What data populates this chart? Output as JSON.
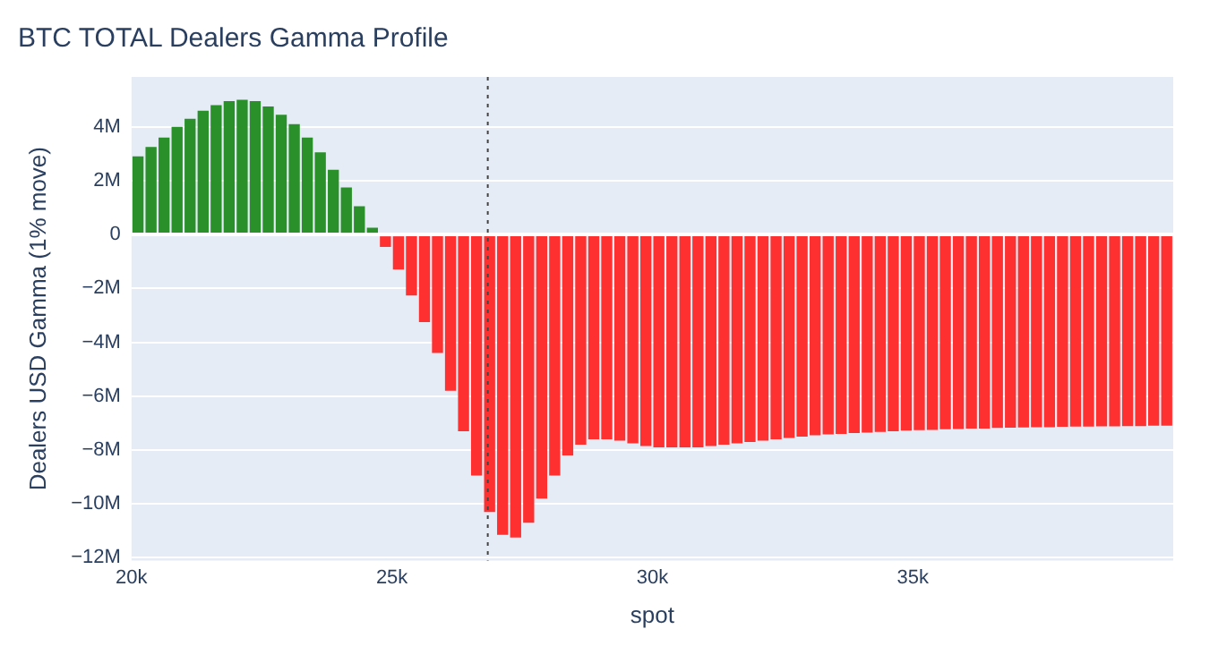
{
  "chart_data": {
    "type": "bar",
    "title": "BTC TOTAL Dealers Gamma Profile",
    "xlabel": "spot",
    "ylabel": "Dealers USD Gamma (1% move)",
    "x": [
      20125,
      20375,
      20625,
      20875,
      21125,
      21375,
      21625,
      21875,
      22125,
      22375,
      22625,
      22875,
      23125,
      23375,
      23625,
      23875,
      24125,
      24375,
      24625,
      24875,
      25125,
      25375,
      25625,
      25875,
      26125,
      26375,
      26625,
      26875,
      27125,
      27375,
      27625,
      27875,
      28125,
      28375,
      28625,
      28875,
      29125,
      29375,
      29625,
      29875,
      30125,
      30375,
      30625,
      30875,
      31125,
      31375,
      31625,
      31875,
      32125,
      32375,
      32625,
      32875,
      33125,
      33375,
      33625,
      33875,
      34125,
      34375,
      34625,
      34875,
      35125,
      35375,
      35625,
      35875,
      36125,
      36375,
      36625,
      36875,
      37125,
      37375,
      37625,
      37875,
      38125,
      38375,
      38625,
      38875,
      39125,
      39375,
      39625,
      39875
    ],
    "values": [
      2900000,
      3250000,
      3600000,
      4000000,
      4300000,
      4600000,
      4800000,
      4950000,
      5000000,
      4950000,
      4750000,
      4450000,
      4100000,
      3600000,
      3050000,
      2400000,
      1750000,
      1050000,
      250000,
      -460000,
      -1300000,
      -2260000,
      -3250000,
      -4400000,
      -5800000,
      -7300000,
      -8950000,
      -10300000,
      -11150000,
      -11250000,
      -10700000,
      -9800000,
      -8950000,
      -8200000,
      -7800000,
      -7600000,
      -7600000,
      -7650000,
      -7750000,
      -7850000,
      -7900000,
      -7900000,
      -7900000,
      -7900000,
      -7850000,
      -7800000,
      -7750000,
      -7700000,
      -7650000,
      -7600000,
      -7550000,
      -7500000,
      -7450000,
      -7420000,
      -7400000,
      -7370000,
      -7350000,
      -7330000,
      -7300000,
      -7280000,
      -7260000,
      -7250000,
      -7230000,
      -7220000,
      -7200000,
      -7200000,
      -7180000,
      -7170000,
      -7160000,
      -7150000,
      -7150000,
      -7140000,
      -7130000,
      -7130000,
      -7120000,
      -7120000,
      -7110000,
      -7110000,
      -7100000,
      -7100000
    ],
    "colors": [
      "#2a912a",
      "#2a912a",
      "#2a912a",
      "#2a912a",
      "#2a912a",
      "#2a912a",
      "#2a912a",
      "#2a912a",
      "#2a912a",
      "#2a912a",
      "#2a912a",
      "#2a912a",
      "#2a912a",
      "#2a912a",
      "#2a912a",
      "#2a912a",
      "#2a912a",
      "#2a912a",
      "#2a912a",
      "#ff3030",
      "#ff3030",
      "#ff3030",
      "#ff3030",
      "#ff3030",
      "#ff3030",
      "#ff3030",
      "#ff3030",
      "#ff3030",
      "#ff3030",
      "#ff3030",
      "#ff3030",
      "#ff3030",
      "#ff3030",
      "#ff3030",
      "#ff3030",
      "#ff3030",
      "#ff3030",
      "#ff3030",
      "#ff3030",
      "#ff3030",
      "#ff3030",
      "#ff3030",
      "#ff3030",
      "#ff3030",
      "#ff3030",
      "#ff3030",
      "#ff3030",
      "#ff3030",
      "#ff3030",
      "#ff3030",
      "#ff3030",
      "#ff3030",
      "#ff3030",
      "#ff3030",
      "#ff3030",
      "#ff3030",
      "#ff3030",
      "#ff3030",
      "#ff3030",
      "#ff3030",
      "#ff3030",
      "#ff3030",
      "#ff3030",
      "#ff3030",
      "#ff3030",
      "#ff3030",
      "#ff3030",
      "#ff3030",
      "#ff3030",
      "#ff3030",
      "#ff3030",
      "#ff3030",
      "#ff3030",
      "#ff3030",
      "#ff3030",
      "#ff3030",
      "#ff3030",
      "#ff3030",
      "#ff3030",
      "#ff3030"
    ],
    "xlim": [
      20000,
      40000
    ],
    "xticks": [
      {
        "value": 20000,
        "label": "20k"
      },
      {
        "value": 25000,
        "label": "25k"
      },
      {
        "value": 30000,
        "label": "30k"
      },
      {
        "value": 35000,
        "label": "35k"
      }
    ],
    "ylim": [
      -12100000,
      5850000
    ],
    "yticks": [
      {
        "value": -12000000,
        "label": "−12M"
      },
      {
        "value": -10000000,
        "label": "−10M"
      },
      {
        "value": -8000000,
        "label": "−8M"
      },
      {
        "value": -6000000,
        "label": "−6M"
      },
      {
        "value": -4000000,
        "label": "−4M"
      },
      {
        "value": -2000000,
        "label": "−2M"
      },
      {
        "value": 0,
        "label": "0"
      },
      {
        "value": 2000000,
        "label": "2M"
      },
      {
        "value": 4000000,
        "label": "4M"
      }
    ],
    "ref_lines": [
      {
        "axis": "x",
        "value": 26840,
        "color": "#444444",
        "line_style": "dotted"
      }
    ],
    "grid": "y",
    "legend": false
  }
}
